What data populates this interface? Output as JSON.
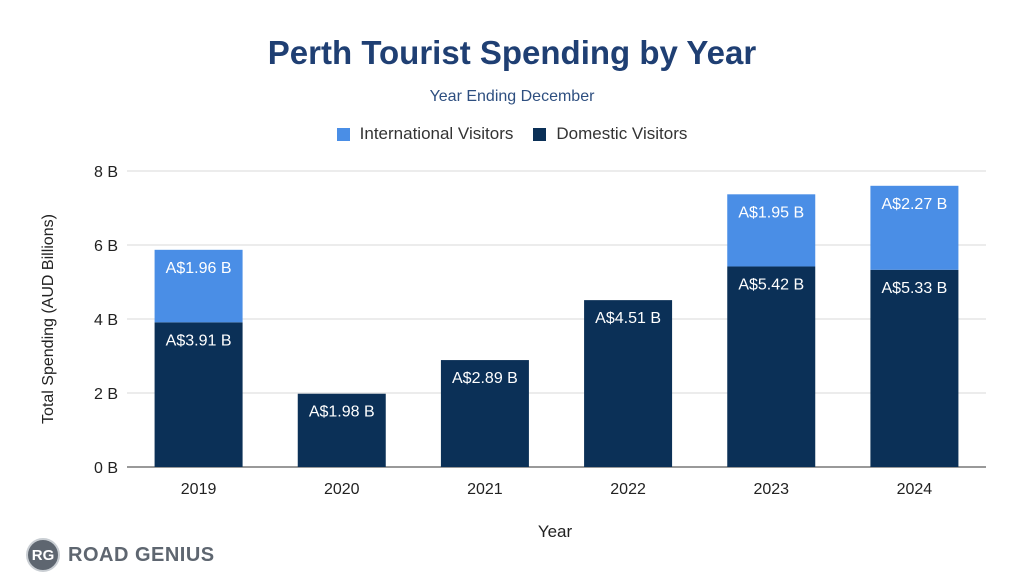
{
  "colors": {
    "title": "#1f3f73",
    "international": "#4a8ee6",
    "domestic": "#0b3057",
    "grid": "#d9d9d9",
    "axis_line": "#333333",
    "label_text": "#ffffff",
    "logo": "#5e6670"
  },
  "chart_data": {
    "type": "bar",
    "stacked": true,
    "title": "Perth Tourist Spending by Year",
    "subtitle": "Year Ending December",
    "xlabel": "Year",
    "ylabel": "Total Spending (AUD Billions)",
    "ylim": [
      0,
      8
    ],
    "yticks": [
      0,
      2,
      4,
      6,
      8
    ],
    "ytick_labels": [
      "0 B",
      "2 B",
      "4 B",
      "6 B",
      "8 B"
    ],
    "grid": true,
    "legend_position": "top-center",
    "categories": [
      "2019",
      "2020",
      "2021",
      "2022",
      "2023",
      "2024"
    ],
    "series": [
      {
        "name": "Domestic Visitors",
        "color_key": "domestic",
        "values": [
          3.91,
          1.98,
          2.89,
          4.51,
          5.42,
          5.33
        ],
        "labels": [
          "A$3.91 B",
          "A$1.98 B",
          "A$2.89 B",
          "A$4.51 B",
          "A$5.42 B",
          "A$5.33 B"
        ]
      },
      {
        "name": "International Visitors",
        "color_key": "international",
        "values": [
          1.96,
          null,
          null,
          null,
          1.95,
          2.27
        ],
        "labels": [
          "A$1.96 B",
          "",
          "",
          "",
          "A$1.95 B",
          "A$2.27 B"
        ]
      }
    ]
  },
  "legend": [
    {
      "label": "International Visitors",
      "color_key": "international"
    },
    {
      "label": "Domestic Visitors",
      "color_key": "domestic"
    }
  ],
  "branding": {
    "badge": "RG",
    "name": "ROAD GENIUS"
  }
}
